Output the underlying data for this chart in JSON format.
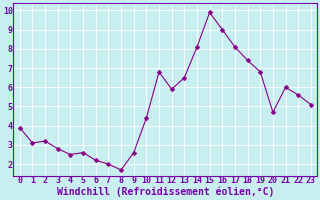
{
  "x": [
    0,
    1,
    2,
    3,
    4,
    5,
    6,
    7,
    8,
    9,
    10,
    11,
    12,
    13,
    14,
    15,
    16,
    17,
    18,
    19,
    20,
    21,
    22,
    23
  ],
  "y": [
    3.9,
    3.1,
    3.2,
    2.8,
    2.5,
    2.6,
    2.2,
    2.0,
    1.7,
    2.6,
    4.4,
    6.8,
    5.9,
    6.5,
    8.1,
    9.9,
    9.0,
    8.1,
    7.4,
    6.8,
    4.7,
    6.0,
    5.6,
    5.1
  ],
  "line_color": "#880088",
  "marker": "D",
  "marker_size": 2.5,
  "bg_color": "#c8eef0",
  "grid_color": "#ffffff",
  "xlabel": "Windchill (Refroidissement éolien,°C)",
  "xlabel_color": "#7700aa",
  "xlabel_fontsize": 7,
  "tick_color": "#7700aa",
  "tick_fontsize": 6,
  "ylim": [
    1.4,
    10.4
  ],
  "xlim": [
    -0.5,
    23.5
  ],
  "yticks": [
    2,
    3,
    4,
    5,
    6,
    7,
    8,
    9,
    10
  ],
  "xticks": [
    0,
    1,
    2,
    3,
    4,
    5,
    6,
    7,
    8,
    9,
    10,
    11,
    12,
    13,
    14,
    15,
    16,
    17,
    18,
    19,
    20,
    21,
    22,
    23
  ],
  "spine_color": "#7700aa",
  "line_width": 0.8
}
